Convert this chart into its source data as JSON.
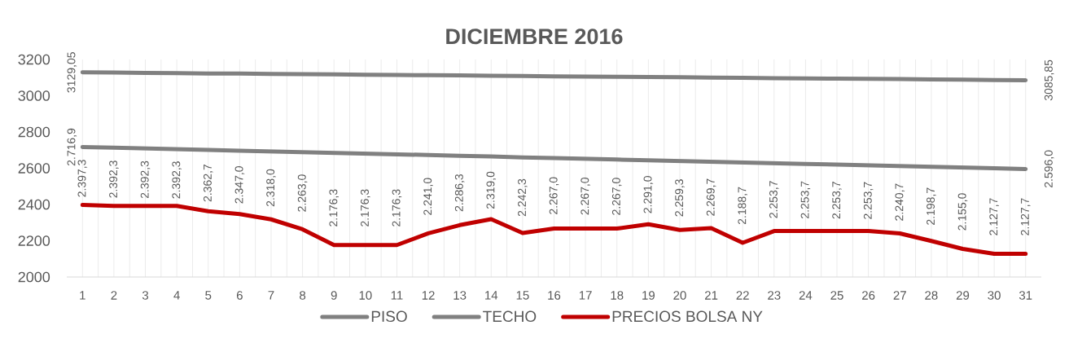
{
  "chart_data": {
    "type": "line",
    "title": "DICIEMBRE 2016",
    "x": [
      1,
      2,
      3,
      4,
      5,
      6,
      7,
      8,
      9,
      10,
      11,
      12,
      13,
      14,
      15,
      16,
      17,
      18,
      19,
      20,
      21,
      22,
      23,
      24,
      25,
      26,
      27,
      28,
      29,
      30,
      31
    ],
    "xlim": [
      0.5,
      31.5
    ],
    "xticks": [
      1,
      {
        "value": 1.5,
        "label": null
      },
      2,
      {
        "value": 2.5,
        "label": null
      },
      3,
      {
        "value": 3.5,
        "label": null
      },
      4,
      {
        "value": 4.5,
        "label": null
      },
      5,
      {
        "value": 5.5,
        "label": null
      },
      6,
      {
        "value": 6.5,
        "label": null
      },
      7,
      {
        "value": 7.5,
        "label": null
      },
      8,
      {
        "value": 8.5,
        "label": null
      },
      9,
      {
        "value": 9.5,
        "label": null
      },
      10,
      {
        "value": 10.5,
        "label": null
      },
      11,
      {
        "value": 11.5,
        "label": null
      },
      12,
      {
        "value": 12.5,
        "label": null
      },
      13,
      {
        "value": 13.5,
        "label": null
      },
      14,
      {
        "value": 14.5,
        "label": null
      },
      15,
      {
        "value": 15.5,
        "label": null
      },
      16,
      {
        "value": 16.5,
        "label": null
      },
      17,
      {
        "value": 17.5,
        "label": null
      },
      18,
      {
        "value": 18.5,
        "label": null
      },
      19,
      {
        "value": 19.5,
        "label": null
      },
      20,
      {
        "value": 20.5,
        "label": null
      },
      21,
      {
        "value": 21.5,
        "label": null
      },
      22,
      {
        "value": 22.5,
        "label": null
      },
      23,
      {
        "value": 23.5,
        "label": null
      },
      24,
      {
        "value": 24.5,
        "label": null
      },
      25,
      {
        "value": 25.5,
        "label": null
      },
      26,
      {
        "value": 26.5,
        "label": null
      },
      27,
      {
        "value": 27.5,
        "label": null
      },
      28,
      {
        "value": 28.5,
        "label": null
      },
      29,
      {
        "value": 29.5,
        "label": null
      },
      30,
      {
        "value": 30.5,
        "label": null
      },
      31
    ],
    "ylim": [
      2000,
      3200
    ],
    "yticks": [
      2000,
      2200,
      2400,
      2600,
      2800,
      3000,
      3200
    ],
    "grid": "x",
    "legend": "bottom",
    "marker": "none",
    "line_style": "solid",
    "series": [
      {
        "name": "PISO",
        "color": "#808080",
        "values": [
          2716.9,
          2713,
          2709,
          2705,
          2701,
          2697,
          2693,
          2689,
          2685,
          2681,
          2677,
          2673,
          2669,
          2665,
          2660,
          2656,
          2652,
          2648,
          2644,
          2640,
          2636,
          2632,
          2628,
          2624,
          2620,
          2616,
          2612,
          2608,
          2604,
          2600,
          2596.0
        ],
        "value_labels": [
          "2.716,9",
          null,
          null,
          null,
          null,
          null,
          null,
          null,
          null,
          null,
          null,
          null,
          null,
          null,
          null,
          null,
          null,
          null,
          null,
          null,
          null,
          null,
          null,
          null,
          null,
          null,
          null,
          null,
          null,
          null,
          "2.596,0"
        ]
      },
      {
        "name": "TECHO",
        "color": "#808080",
        "values": [
          3129.05,
          3128,
          3126,
          3125,
          3123,
          3122,
          3120,
          3119,
          3118,
          3116,
          3115,
          3113,
          3112,
          3110,
          3109,
          3107,
          3106,
          3105,
          3103,
          3102,
          3100,
          3099,
          3097,
          3096,
          3094,
          3093,
          3092,
          3090,
          3089,
          3087,
          3085.85
        ],
        "value_labels": [
          "3129,05",
          null,
          null,
          null,
          null,
          null,
          null,
          null,
          null,
          null,
          null,
          null,
          null,
          null,
          null,
          null,
          null,
          null,
          null,
          null,
          null,
          null,
          null,
          null,
          null,
          null,
          null,
          null,
          null,
          null,
          "3085,85"
        ]
      },
      {
        "name": "PRECIOS BOLSA NY",
        "color": "#c00000",
        "values": [
          2397.3,
          2392.3,
          2392.3,
          2392.3,
          2362.7,
          2347.0,
          2318.0,
          2263.0,
          2176.3,
          2176.3,
          2176.3,
          2241.0,
          2286.3,
          2319.0,
          2242.3,
          2267.0,
          2267.0,
          2267.0,
          2291.0,
          2259.3,
          2269.7,
          2188.7,
          2253.7,
          2253.7,
          2253.7,
          2253.7,
          2240.7,
          2198.7,
          2155.0,
          2127.7,
          2127.7
        ],
        "value_labels": [
          "2.397,3",
          "2.392,3",
          "2.392,3",
          "2.392,3",
          "2.362,7",
          "2.347,0",
          "2.318,0",
          "2.263,0",
          "2.176,3",
          "2.176,3",
          "2.176,3",
          "2.241,0",
          "2.286,3",
          "2.319,0",
          "2.242,3",
          "2.267,0",
          "2.267,0",
          "2.267,0",
          "2.291,0",
          "2.259,3",
          "2.269,7",
          "2.188,7",
          "2.253,7",
          "2.253,7",
          "2.253,7",
          "2.253,7",
          "2.240,7",
          "2.198,7",
          "2.155,0",
          "2.127,7",
          "2.127,7"
        ]
      }
    ]
  }
}
